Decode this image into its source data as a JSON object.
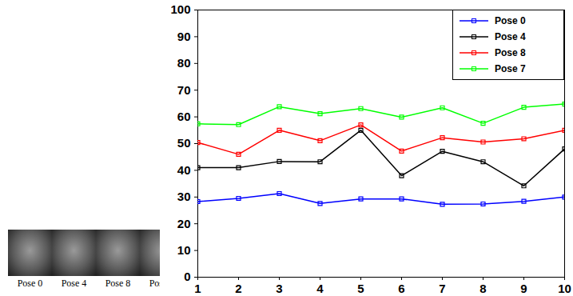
{
  "chart_data": {
    "type": "line",
    "annotations": [
      "Pose 0",
      "Pose 4",
      "Pose 8",
      "Pose 7"
    ],
    "x": [
      1,
      2,
      3,
      4,
      5,
      6,
      7,
      8,
      9,
      10
    ],
    "series": [
      {
        "name": "Pose 0",
        "color": "#0000ff",
        "values": [
          28.3,
          29.5,
          31.3,
          27.6,
          29.3,
          29.3,
          27.3,
          27.4,
          28.4,
          30.0
        ]
      },
      {
        "name": "Pose 4",
        "color": "#000000",
        "values": [
          41.0,
          41.0,
          43.3,
          43.2,
          55.0,
          38.0,
          47.1,
          43.2,
          34.2,
          48.0
        ]
      },
      {
        "name": "Pose 8",
        "color": "#ff0000",
        "values": [
          50.4,
          46.0,
          55.0,
          51.1,
          57.0,
          47.2,
          52.2,
          50.6,
          51.8,
          55.0
        ]
      },
      {
        "name": "Pose 7",
        "color": "#00ff00",
        "values": [
          57.4,
          57.1,
          63.8,
          61.2,
          63.1,
          59.9,
          63.4,
          57.6,
          63.6,
          64.8
        ]
      }
    ],
    "xlim": [
      1,
      10
    ],
    "xticks": [
      1,
      2,
      3,
      4,
      5,
      6,
      7,
      8,
      9,
      10
    ],
    "ylim": [
      0,
      100
    ],
    "yticks": [
      0,
      10,
      20,
      30,
      40,
      50,
      60,
      70,
      80,
      90,
      100
    ],
    "grid": false,
    "legend": "upper right",
    "marker": "square"
  }
}
